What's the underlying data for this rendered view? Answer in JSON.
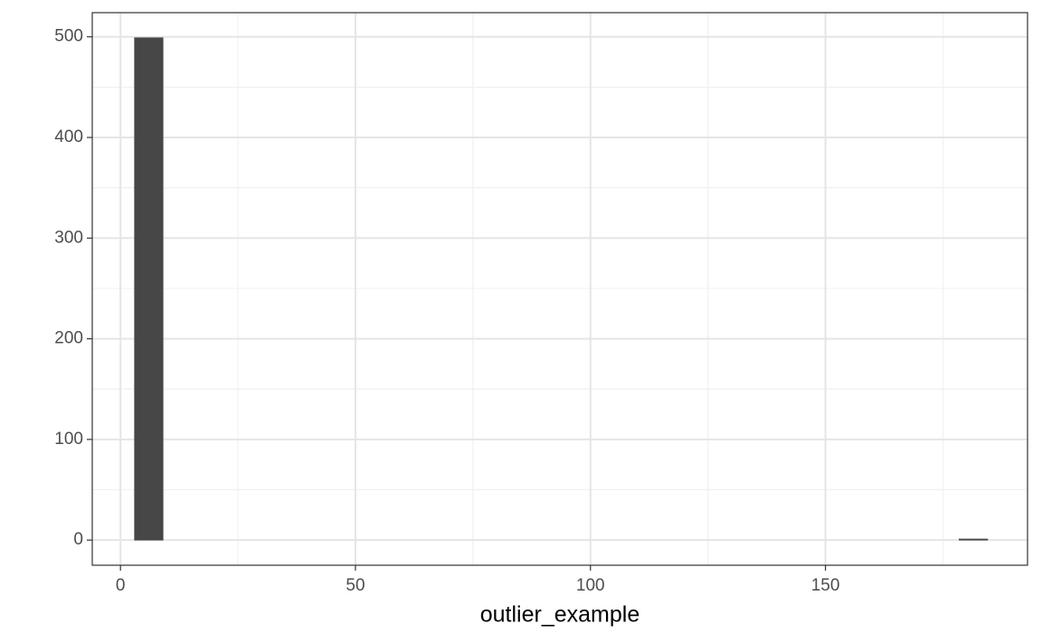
{
  "chart_data": {
    "type": "histogram",
    "x_label": "outlier_example",
    "bins": [
      3,
      9.05,
      15.1,
      21.15,
      27.2,
      33.25,
      39.3,
      45.35,
      51.4,
      57.45,
      63.5,
      69.55,
      75.6,
      81.65,
      87.7,
      93.75,
      99.8,
      105.85,
      111.9,
      117.95,
      124,
      130.05,
      136.1,
      142.15,
      148.2,
      154.25,
      160.3,
      166.35,
      172.4,
      178.45,
      184.5
    ],
    "values": [
      499,
      0,
      0,
      0,
      0,
      0,
      0,
      0,
      0,
      0,
      0,
      0,
      0,
      0,
      0,
      0,
      0,
      0,
      0,
      0,
      0,
      0,
      0,
      0,
      0,
      0,
      0,
      0,
      0,
      1
    ],
    "color": "#474747",
    "xlim": [
      -6,
      193
    ],
    "xticks": [
      0,
      50,
      100,
      150
    ],
    "ylim": [
      -25,
      524
    ],
    "yticks": [
      0,
      100,
      200,
      300,
      400,
      500
    ],
    "grid": true
  }
}
